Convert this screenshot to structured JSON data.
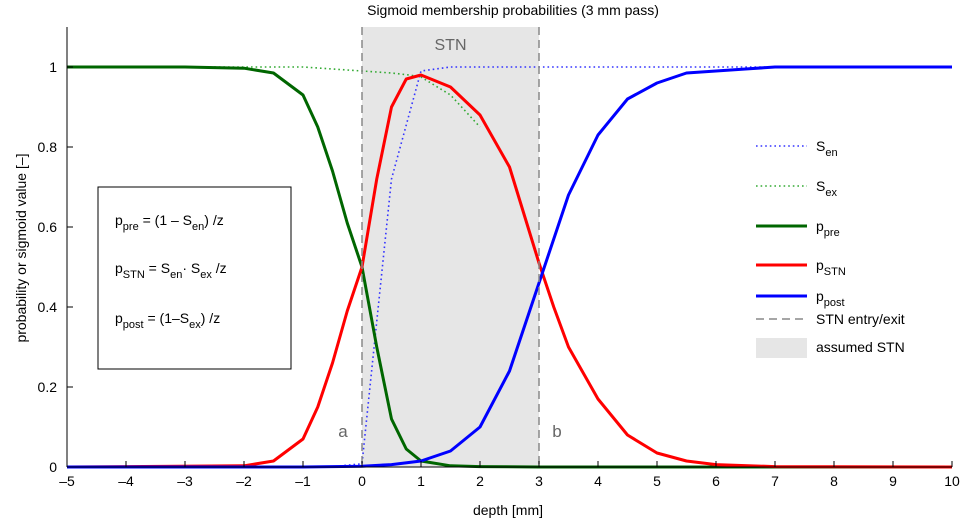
{
  "chart_data": {
    "type": "line",
    "title": "Sigmoid membership probabilities (3 mm pass)",
    "xlabel": "depth [mm]",
    "ylabel": "probability or sigmoid value [–]",
    "xlim": [
      -5,
      10
    ],
    "ylim": [
      0,
      1.1
    ],
    "xticks": [
      -5,
      -4,
      -3,
      -2,
      -1,
      0,
      1,
      2,
      3,
      4,
      5,
      6,
      7,
      8,
      9,
      10
    ],
    "yticks": [
      0,
      0.2,
      0.4,
      0.6,
      0.8,
      1
    ],
    "xtick_labels": [
      "–5",
      "–4",
      "–3",
      "–2",
      "–1",
      "0",
      "1",
      "2",
      "3",
      "4",
      "5",
      "6",
      "7",
      "8",
      "9",
      "10"
    ],
    "ytick_labels": [
      "0",
      "0.2",
      "0.4",
      "0.6",
      "0.8",
      "1"
    ],
    "grid": false,
    "stn_region": {
      "x_start": 0,
      "x_end": 3,
      "label": "STN",
      "color": "#e6e6e6"
    },
    "boundary_markers": [
      {
        "label": "a",
        "x": 0
      },
      {
        "label": "b",
        "x": 3
      }
    ],
    "series": [
      {
        "key": "S_en",
        "style": "dotted",
        "color": "#3333ff",
        "x": [
          -1.0,
          -0.5,
          0,
          0.5,
          1.0,
          1.5,
          2,
          3,
          4,
          5,
          6,
          7,
          8,
          9,
          10
        ],
        "y": [
          0.0,
          0.001,
          0.008,
          0.72,
          0.99,
          1.0,
          1.0,
          1.0,
          1.0,
          1.0,
          1.0,
          1.0,
          1.0,
          1.0,
          1.0
        ]
      },
      {
        "key": "S_ex",
        "style": "dotted",
        "color": "#33aa33",
        "x": [
          -5,
          -4,
          -3,
          -2,
          -1,
          0,
          0.5,
          0.8,
          1.0,
          1.5,
          2.0
        ],
        "y": [
          1.0,
          1.0,
          1.0,
          1.0,
          1.0,
          0.99,
          0.985,
          0.98,
          0.975,
          0.93,
          0.85
        ]
      },
      {
        "key": "p_pre",
        "style": "solid",
        "color": "#006600",
        "x": [
          -5,
          -4,
          -3,
          -2,
          -1.5,
          -1.0,
          -0.75,
          -0.5,
          -0.25,
          0,
          0.25,
          0.5,
          0.75,
          1.0,
          1.5,
          2,
          3,
          5,
          10
        ],
        "y": [
          1.0,
          1.0,
          1.0,
          0.997,
          0.985,
          0.93,
          0.85,
          0.74,
          0.61,
          0.5,
          0.3,
          0.12,
          0.045,
          0.015,
          0.003,
          0.001,
          0.0,
          0.0,
          0.0
        ]
      },
      {
        "key": "p_STN",
        "style": "solid",
        "color": "#ff0000",
        "x": [
          -5,
          -2,
          -1.5,
          -1.0,
          -0.75,
          -0.5,
          -0.25,
          0,
          0.25,
          0.5,
          0.75,
          1.0,
          1.5,
          2.0,
          2.5,
          2.75,
          3.0,
          3.25,
          3.5,
          4.0,
          4.5,
          5.0,
          5.5,
          6.0,
          7.0,
          10
        ],
        "y": [
          0.0,
          0.003,
          0.015,
          0.07,
          0.15,
          0.26,
          0.39,
          0.5,
          0.72,
          0.9,
          0.97,
          0.98,
          0.95,
          0.88,
          0.75,
          0.63,
          0.51,
          0.4,
          0.3,
          0.17,
          0.08,
          0.035,
          0.015,
          0.006,
          0.001,
          0.0
        ]
      },
      {
        "key": "p_post",
        "style": "solid",
        "color": "#0000ff",
        "x": [
          -5,
          -1,
          0,
          0.5,
          1.0,
          1.5,
          2.0,
          2.5,
          3.0,
          3.5,
          4.0,
          4.5,
          5.0,
          5.5,
          6.0,
          6.5,
          7.0,
          8.0,
          10
        ],
        "y": [
          0.0,
          0.0,
          0.002,
          0.006,
          0.015,
          0.04,
          0.1,
          0.24,
          0.46,
          0.68,
          0.83,
          0.92,
          0.96,
          0.985,
          0.99,
          0.995,
          1.0,
          1.0,
          1.0
        ]
      }
    ],
    "legend": {
      "placement": "right",
      "items": [
        {
          "key": "S_en",
          "base": "S",
          "sub": "en",
          "kind": "dotted",
          "color": "#3333ff"
        },
        {
          "key": "S_ex",
          "base": "S",
          "sub": "ex",
          "kind": "dotted",
          "color": "#33aa33"
        },
        {
          "key": "p_pre",
          "base": "p",
          "sub": "pre",
          "kind": "solid",
          "color": "#006600"
        },
        {
          "key": "p_STN",
          "base": "p",
          "sub": "STN",
          "kind": "solid",
          "color": "#ff0000"
        },
        {
          "key": "p_post",
          "base": "p",
          "sub": "post",
          "kind": "solid",
          "color": "#0000ff"
        },
        {
          "key": "entry_exit",
          "text": "STN entry/exit",
          "kind": "dashed",
          "color": "#888888"
        },
        {
          "key": "assumed",
          "text": "assumed STN",
          "kind": "patch",
          "color": "#e6e6e6"
        }
      ]
    },
    "annotations": {
      "formulas": [
        {
          "lhs_base": "p",
          "lhs_sub": "pre",
          "rhs": [
            {
              "t": " = (1 – S"
            },
            {
              "s": "en"
            },
            {
              "t": ") /z"
            }
          ]
        },
        {
          "lhs_base": "p",
          "lhs_sub": "STN",
          "rhs": [
            {
              "t": " = S"
            },
            {
              "s": "en"
            },
            {
              "t": "· S"
            },
            {
              "s": "ex"
            },
            {
              "t": " /z"
            }
          ]
        },
        {
          "lhs_base": "p",
          "lhs_sub": "post",
          "rhs": [
            {
              "t": " = (1–S"
            },
            {
              "s": "ex"
            },
            {
              "t": ") /z"
            }
          ]
        }
      ]
    }
  }
}
